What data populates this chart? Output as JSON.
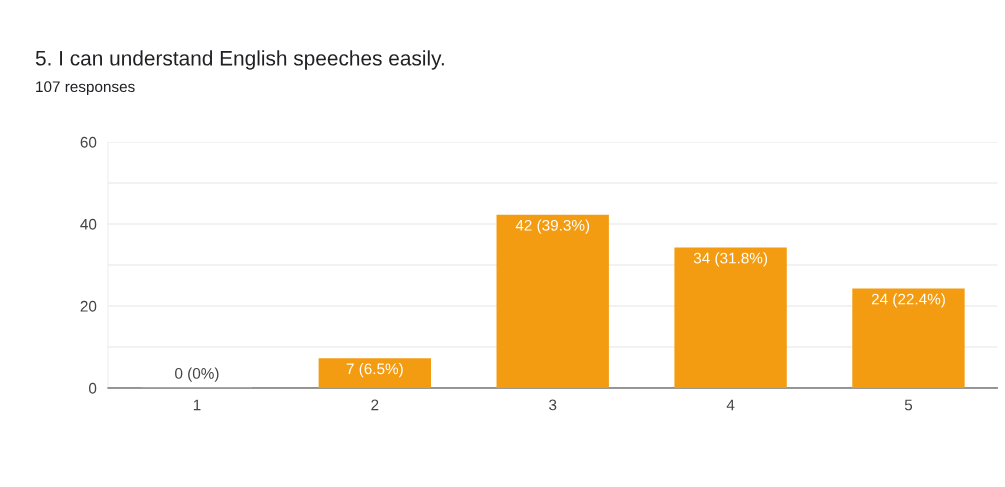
{
  "chart_data": {
    "type": "bar",
    "title": "5. I can understand English speeches easily.",
    "subtitle": "107 responses",
    "categories": [
      "1",
      "2",
      "3",
      "4",
      "5"
    ],
    "values": [
      0,
      7,
      42,
      34,
      24
    ],
    "value_labels": [
      "0 (0%)",
      "7 (6.5%)",
      "42 (39.3%)",
      "34 (31.8%)",
      "24 (22.4%)"
    ],
    "color": "#f39c12",
    "ylim": [
      0,
      60
    ],
    "yticks": [
      0,
      {
        "value": 10,
        "label": null
      },
      20,
      {
        "value": 30,
        "label": null
      },
      40,
      {
        "value": 50,
        "label": null
      },
      60
    ],
    "grid": "y"
  }
}
